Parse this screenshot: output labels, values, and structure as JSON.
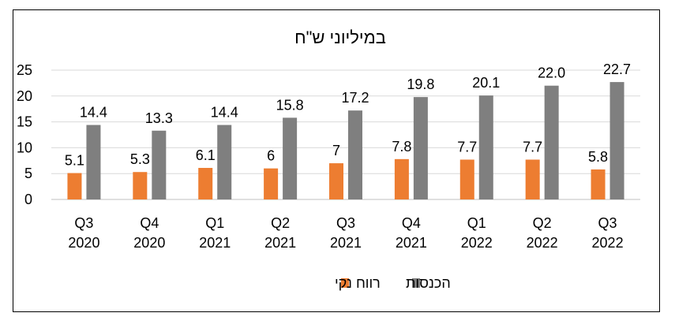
{
  "chart_data": {
    "type": "bar",
    "title": "במיליוני ש\"ח",
    "categories": [
      [
        "Q3",
        "2020"
      ],
      [
        "Q4",
        "2020"
      ],
      [
        "Q1",
        "2021"
      ],
      [
        "Q2",
        "2021"
      ],
      [
        "Q3",
        "2021"
      ],
      [
        "Q4",
        "2021"
      ],
      [
        "Q1",
        "2022"
      ],
      [
        "Q2",
        "2022"
      ],
      [
        "Q3",
        "2022"
      ]
    ],
    "series": [
      {
        "name": "רווח נקי",
        "color": "#ED7D31",
        "values": [
          5.1,
          5.3,
          6.1,
          6,
          7,
          7.8,
          7.7,
          7.7,
          5.8
        ],
        "labels": [
          "5.1",
          "5.3",
          "6.1",
          "6",
          "7",
          "7.8",
          "7.7",
          "7.7",
          "5.8"
        ]
      },
      {
        "name": "הכנסות",
        "color": "#7F7F7F",
        "values": [
          14.4,
          13.3,
          14.4,
          15.8,
          17.2,
          19.8,
          20.1,
          22.0,
          22.7
        ],
        "labels": [
          "14.4",
          "13.3",
          "14.4",
          "15.8",
          "17.2",
          "19.8",
          "20.1",
          "22.0",
          "22.7"
        ]
      }
    ],
    "yticks": [
      "0",
      "5",
      "10",
      "15",
      "20",
      "25"
    ],
    "ylim": [
      0,
      25
    ],
    "grid": true,
    "legend": "bottom"
  }
}
